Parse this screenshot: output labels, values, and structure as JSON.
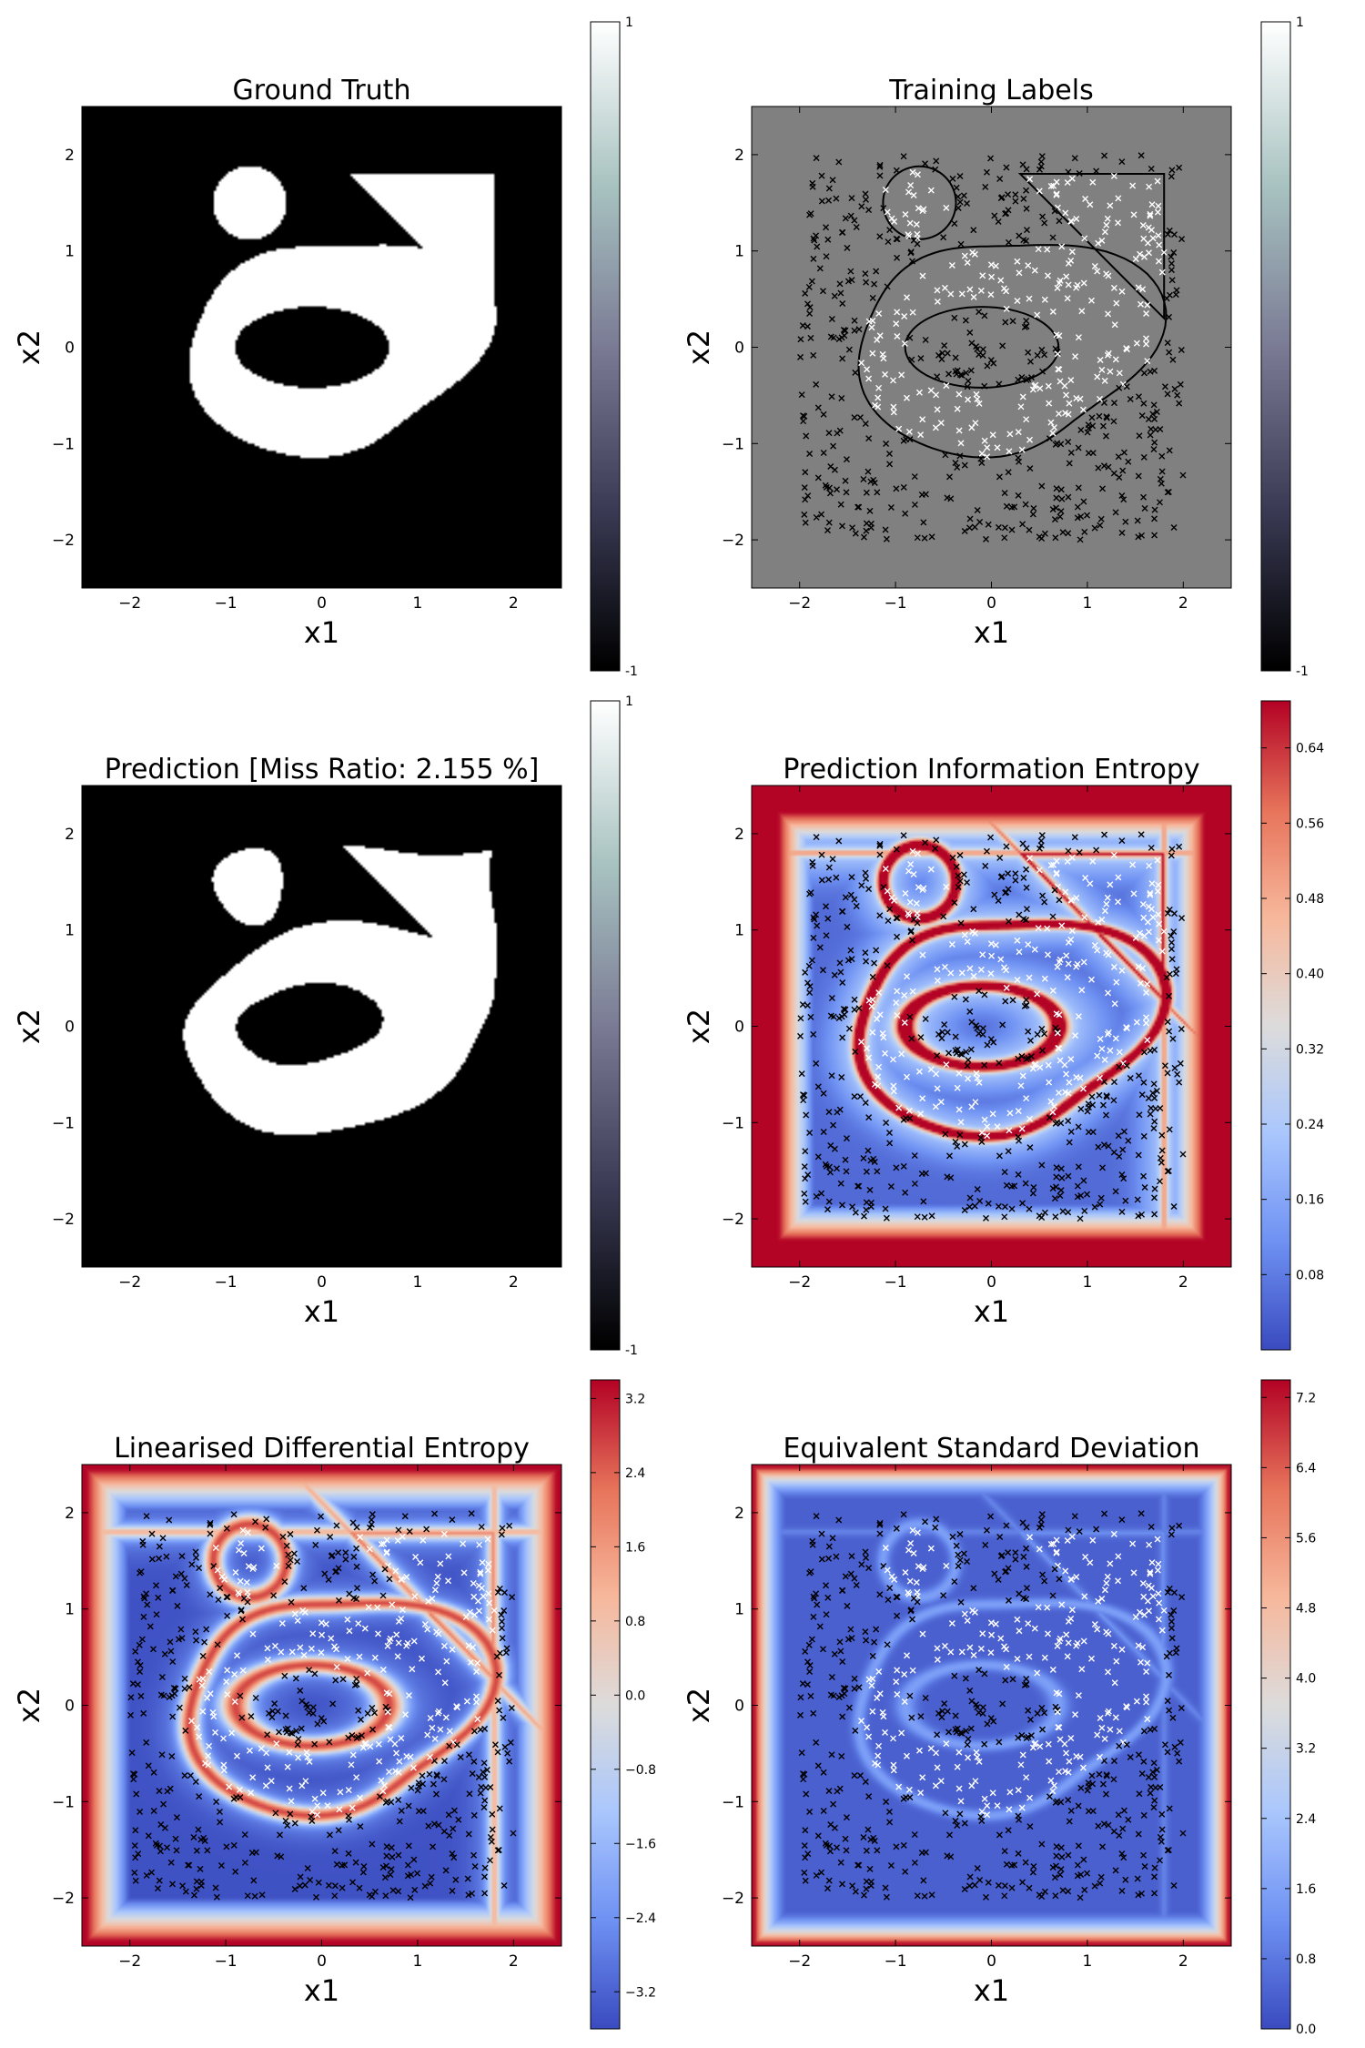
{
  "colors": {
    "gray_cmap": [
      "#000000",
      "#3b3b56",
      "#7b7b95",
      "#a8c3c1",
      "#ffffff"
    ],
    "coolwarm": [
      "#3b4cc0",
      "#6f92f3",
      "#aac7fd",
      "#dddcdc",
      "#f7b89c",
      "#e7745b",
      "#b40426"
    ],
    "mark_outside": "#000000",
    "mark_inside": "#ffffff",
    "training_background": "#808080"
  },
  "chart_data": [
    {
      "type": "heatmap",
      "title": "Ground Truth",
      "xlabel": "x1",
      "ylabel": "x2",
      "xlim": [
        -2.5,
        2.5
      ],
      "ylim": [
        -2.5,
        2.5
      ],
      "xticks": [
        "−2",
        "−1",
        "0",
        "1",
        "2"
      ],
      "yticks": [
        "−2",
        "−1",
        "0",
        "1",
        "2"
      ],
      "field": "truth",
      "colorbar": {
        "cmap": "gray",
        "min": -1,
        "max": 1,
        "ticks": [
          "-1",
          "1"
        ]
      },
      "points": false,
      "outline": false
    },
    {
      "type": "scatter",
      "title": "Training Labels",
      "xlabel": "x1",
      "ylabel": "x2",
      "xlim": [
        -2.5,
        2.5
      ],
      "ylim": [
        -2.5,
        2.5
      ],
      "xticks": [
        "−2",
        "−1",
        "0",
        "1",
        "2"
      ],
      "yticks": [
        "−2",
        "−1",
        "0",
        "1",
        "2"
      ],
      "field": "flat",
      "colorbar": {
        "cmap": "gray",
        "min": -1,
        "max": 1,
        "ticks": [
          "-1",
          "1"
        ]
      },
      "points": true,
      "outline": true
    },
    {
      "type": "heatmap",
      "title": "Prediction [Miss Ratio: 2.155 %]",
      "xlabel": "x1",
      "ylabel": "x2",
      "xlim": [
        -2.5,
        2.5
      ],
      "ylim": [
        -2.5,
        2.5
      ],
      "xticks": [
        "−2",
        "−1",
        "0",
        "1",
        "2"
      ],
      "yticks": [
        "−2",
        "−1",
        "0",
        "1",
        "2"
      ],
      "field": "prediction",
      "colorbar": {
        "cmap": "gray",
        "min": -1,
        "max": 1,
        "ticks": [
          "-1",
          "1"
        ]
      },
      "points": false,
      "outline": false
    },
    {
      "type": "heatmap",
      "title": "Prediction Information Entropy",
      "xlabel": "x1",
      "ylabel": "x2",
      "xlim": [
        -2.5,
        2.5
      ],
      "ylim": [
        -2.5,
        2.5
      ],
      "xticks": [
        "−2",
        "−1",
        "0",
        "1",
        "2"
      ],
      "yticks": [
        "−2",
        "−1",
        "0",
        "1",
        "2"
      ],
      "field": "entropy",
      "colorbar": {
        "cmap": "coolwarm",
        "min": 0.0,
        "max": 0.69,
        "ticks": [
          "0.08",
          "0.16",
          "0.24",
          "0.32",
          "0.40",
          "0.48",
          "0.56",
          "0.64"
        ],
        "tick_values": [
          0.08,
          0.16,
          0.24,
          0.32,
          0.4,
          0.48,
          0.56,
          0.64
        ]
      },
      "points": true,
      "outline": false
    },
    {
      "type": "heatmap",
      "title": "Linearised Differential Entropy",
      "xlabel": "x1",
      "ylabel": "x2",
      "xlim": [
        -2.5,
        2.5
      ],
      "ylim": [
        -2.5,
        2.5
      ],
      "xticks": [
        "−2",
        "−1",
        "0",
        "1",
        "2"
      ],
      "yticks": [
        "−2",
        "−1",
        "0",
        "1",
        "2"
      ],
      "field": "diffentropy",
      "colorbar": {
        "cmap": "coolwarm",
        "min": -3.6,
        "max": 3.4,
        "ticks": [
          "−3.2",
          "−2.4",
          "−1.6",
          "−0.8",
          "0.0",
          "0.8",
          "1.6",
          "2.4",
          "3.2"
        ],
        "tick_values": [
          -3.2,
          -2.4,
          -1.6,
          -0.8,
          0.0,
          0.8,
          1.6,
          2.4,
          3.2
        ]
      },
      "points": true,
      "outline": false
    },
    {
      "type": "heatmap",
      "title": "Equivalent Standard Deviation",
      "xlabel": "x1",
      "ylabel": "x2",
      "xlim": [
        -2.5,
        2.5
      ],
      "ylim": [
        -2.5,
        2.5
      ],
      "xticks": [
        "−2",
        "−1",
        "0",
        "1",
        "2"
      ],
      "yticks": [
        "−2",
        "−1",
        "0",
        "1",
        "2"
      ],
      "field": "stddev",
      "colorbar": {
        "cmap": "coolwarm",
        "min": 0.0,
        "max": 7.4,
        "ticks": [
          "0.0",
          "0.8",
          "1.6",
          "2.4",
          "3.2",
          "4.0",
          "4.8",
          "5.6",
          "6.4",
          "7.2"
        ],
        "tick_values": [
          0.0,
          0.8,
          1.6,
          2.4,
          3.2,
          4.0,
          4.8,
          5.6,
          6.4,
          7.2
        ]
      },
      "points": true,
      "outline": false
    }
  ]
}
